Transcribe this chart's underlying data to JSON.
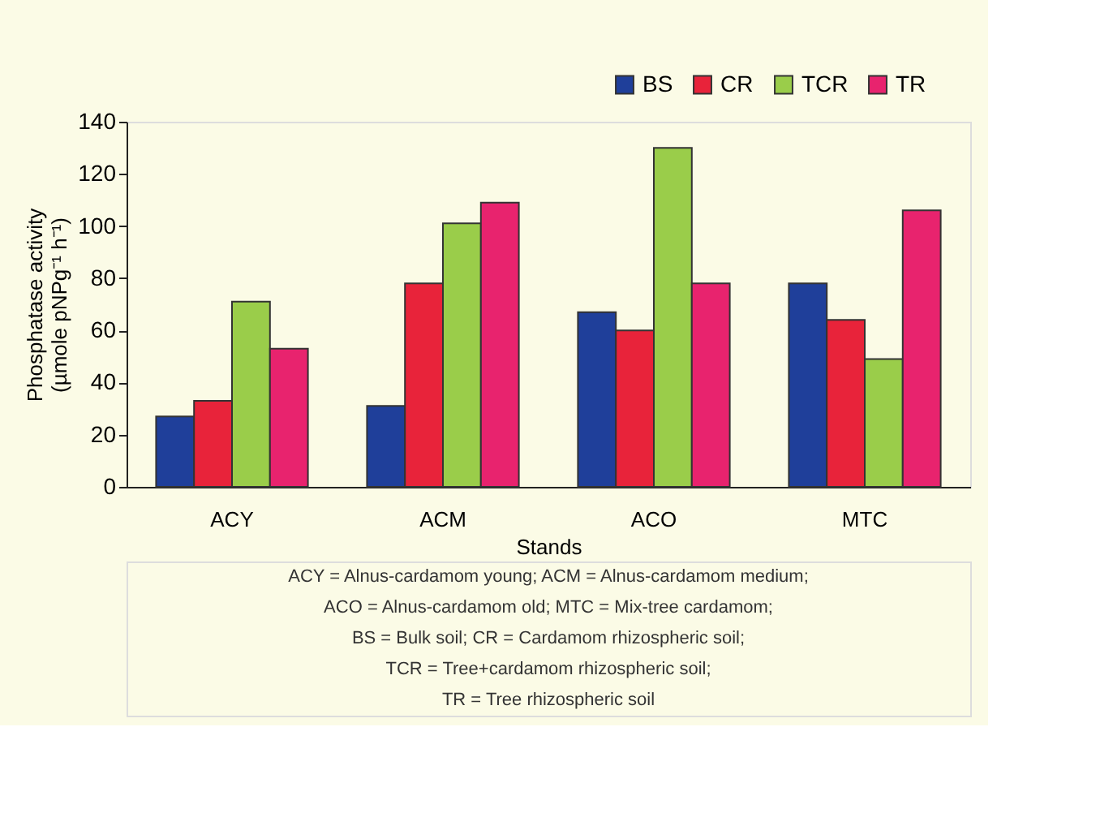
{
  "chart_data": {
    "type": "bar",
    "xlabel": "Stands",
    "ylabel": "Phosphatase activity (µmole pNPg⁻¹ h⁻¹)",
    "categories": [
      "ACY",
      "ACM",
      "ACO",
      "MTC"
    ],
    "series": [
      {
        "name": "BS",
        "color": "#1f3f9a",
        "values": [
          27,
          31,
          67,
          78
        ]
      },
      {
        "name": "CR",
        "color": "#e8233a",
        "values": [
          33,
          78,
          60,
          64
        ]
      },
      {
        "name": "TCR",
        "color": "#9acd4a",
        "values": [
          71,
          101,
          130,
          49
        ]
      },
      {
        "name": "TR",
        "color": "#e8236e",
        "values": [
          53,
          109,
          78,
          106
        ]
      }
    ],
    "ylim": [
      0,
      140
    ],
    "yticks": [
      0,
      20,
      40,
      60,
      80,
      100,
      120,
      140
    ],
    "grid": false,
    "legend": "top right",
    "annotations": [
      "ACY = Alnus-cardamom young; ACM = Alnus-cardamom medium;",
      "ACO = Alnus-cardamom old; MTC = Mix-tree cardamom;",
      "BS = Bulk soil; CR = Cardamom rhizospheric soil;",
      "TCR = Tree+cardamom rhizospheric soil;",
      "TR = Tree rhizospheric soil"
    ]
  }
}
